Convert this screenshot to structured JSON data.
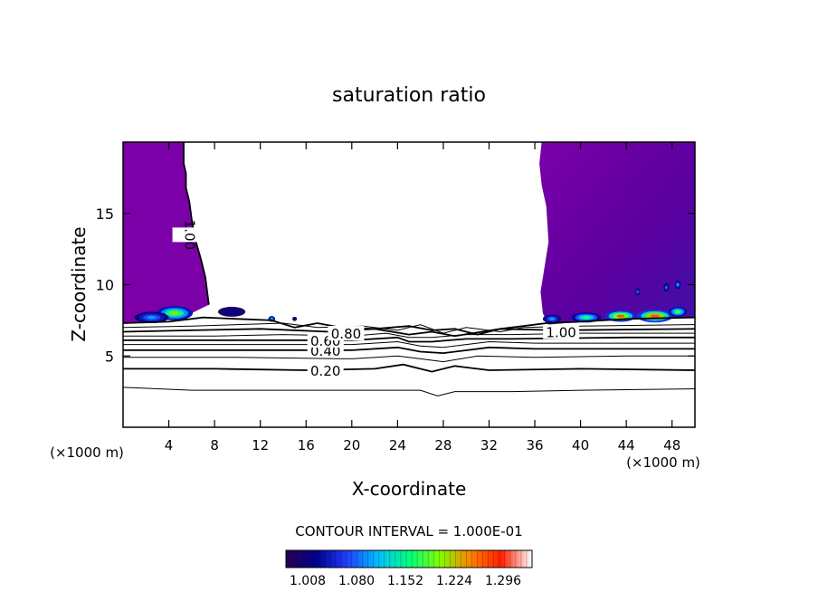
{
  "chart_data": {
    "type": "contour",
    "title": "saturation ratio",
    "xlabel": "X-coordinate",
    "ylabel": "Z-coordinate",
    "x_unit_left": "(×1000 m)",
    "x_unit_right": "(×1000 m)",
    "xlim": [
      0,
      50
    ],
    "ylim": [
      0,
      20
    ],
    "x_ticks": [
      4,
      8,
      12,
      16,
      20,
      24,
      28,
      32,
      36,
      40,
      44,
      48
    ],
    "y_ticks": [
      5,
      10,
      15
    ],
    "contour_labels": [
      {
        "text": "0.20",
        "x": 17.7,
        "z": 4.0
      },
      {
        "text": "0.40",
        "x": 17.7,
        "z": 5.4
      },
      {
        "text": "0.60",
        "x": 17.7,
        "z": 6.1
      },
      {
        "text": "0.80",
        "x": 19.5,
        "z": 6.6
      },
      {
        "text": "1.00",
        "x": 38.3,
        "z": 6.7
      },
      {
        "text": "1.00",
        "x": 5.9,
        "z": 13.5
      }
    ],
    "contour_lines": [
      {
        "level": "0.10",
        "x": [
          0,
          6,
          12,
          20,
          26,
          27.5,
          29,
          34,
          40,
          50
        ],
        "z": [
          2.8,
          2.6,
          2.6,
          2.6,
          2.6,
          2.2,
          2.5,
          2.5,
          2.6,
          2.7
        ]
      },
      {
        "level": "0.20",
        "x": [
          0,
          8,
          16,
          22,
          24.5,
          27,
          29,
          32,
          40,
          50
        ],
        "z": [
          4.1,
          4.1,
          4.0,
          4.1,
          4.4,
          3.9,
          4.3,
          4.0,
          4.1,
          4.0
        ]
      },
      {
        "level": "0.30",
        "x": [
          0,
          10,
          20,
          24,
          26,
          28,
          31,
          36,
          44,
          50
        ],
        "z": [
          4.9,
          4.9,
          4.8,
          5.0,
          4.8,
          4.6,
          5.0,
          4.9,
          5.0,
          5.0
        ]
      },
      {
        "level": "0.40",
        "x": [
          0,
          10,
          20,
          24,
          26,
          28,
          32,
          36,
          44,
          50
        ],
        "z": [
          5.4,
          5.4,
          5.4,
          5.6,
          5.3,
          5.2,
          5.6,
          5.5,
          5.5,
          5.5
        ]
      },
      {
        "level": "0.50",
        "x": [
          0,
          10,
          20,
          24,
          26,
          28,
          32,
          36,
          44,
          50
        ],
        "z": [
          5.8,
          5.8,
          5.8,
          6.0,
          5.7,
          5.6,
          6.0,
          5.9,
          5.9,
          5.9
        ]
      },
      {
        "level": "0.60",
        "x": [
          0,
          10,
          20,
          24,
          25,
          27,
          30,
          34,
          44,
          50
        ],
        "z": [
          6.1,
          6.1,
          6.1,
          6.3,
          6.0,
          6.0,
          6.2,
          6.2,
          6.3,
          6.3
        ]
      },
      {
        "level": "0.70",
        "x": [
          0,
          8,
          14,
          20,
          23,
          25,
          27,
          30,
          34,
          40,
          50
        ],
        "z": [
          6.4,
          6.4,
          6.5,
          6.4,
          6.6,
          6.3,
          6.3,
          6.5,
          6.5,
          6.6,
          6.6
        ]
      },
      {
        "level": "0.80",
        "x": [
          0,
          6,
          12,
          18,
          22,
          25,
          27,
          29,
          33,
          38,
          50
        ],
        "z": [
          6.7,
          6.8,
          6.9,
          6.7,
          6.9,
          6.5,
          6.7,
          6.4,
          6.9,
          6.8,
          6.9
        ]
      },
      {
        "level": "0.90",
        "x": [
          0,
          6,
          10,
          14,
          17,
          21,
          24,
          26,
          28,
          30,
          33,
          35,
          40,
          50
        ],
        "z": [
          7.0,
          7.1,
          7.2,
          7.3,
          7.0,
          7.1,
          6.8,
          7.2,
          6.6,
          7.0,
          6.7,
          7.0,
          7.1,
          7.2
        ]
      },
      {
        "level": "1.00",
        "x": [
          0,
          4,
          7,
          10,
          13,
          15,
          17,
          19,
          22,
          25,
          27,
          29,
          31,
          33,
          35,
          37,
          40,
          44,
          50
        ],
        "z": [
          7.3,
          7.4,
          7.7,
          7.6,
          7.5,
          7.0,
          7.3,
          7.0,
          6.9,
          7.1,
          6.8,
          6.9,
          6.5,
          6.9,
          7.1,
          7.3,
          7.4,
          7.6,
          7.7
        ]
      },
      {
        "level": "1.00",
        "x": [
          5.3,
          5.3,
          5.5,
          5.5,
          5.8,
          6.0,
          6.3,
          6.8,
          7.2,
          7.5
        ],
        "z": [
          20,
          18.5,
          17.8,
          16.8,
          15.8,
          14.6,
          13.2,
          11.8,
          10.5,
          8.6
        ]
      }
    ],
    "supersaturated_region": {
      "left": {
        "x": [
          0,
          5.3,
          5.3,
          5.5,
          5.5,
          5.8,
          6.0,
          6.3,
          6.8,
          7.2,
          7.5,
          5.0,
          2.0,
          0
        ],
        "z": [
          20,
          20,
          18.5,
          17.8,
          16.8,
          15.8,
          14.6,
          13.2,
          11.8,
          10.5,
          8.6,
          7.6,
          7.4,
          7.3
        ]
      },
      "right": {
        "x": [
          36.6,
          36.4,
          36.6,
          37.0,
          37.2,
          36.8,
          36.5,
          36.7,
          37.2,
          40,
          44,
          50,
          50
        ],
        "z": [
          20,
          18.5,
          17.0,
          15.5,
          13.0,
          11.0,
          9.5,
          8.0,
          7.2,
          7.4,
          7.6,
          7.7,
          20
        ]
      },
      "blobs": [
        {
          "x": 4.5,
          "z": 8.0,
          "rx": 1.6,
          "rz": 0.5,
          "level": 1.22
        },
        {
          "x": 2.5,
          "z": 7.7,
          "rx": 1.5,
          "rz": 0.4,
          "level": 1.12
        },
        {
          "x": 9.5,
          "z": 8.1,
          "rx": 1.2,
          "rz": 0.35,
          "level": 1.05
        },
        {
          "x": 13.0,
          "z": 7.6,
          "rx": 0.3,
          "rz": 0.2,
          "level": 1.12
        },
        {
          "x": 15.0,
          "z": 7.6,
          "rx": 0.2,
          "rz": 0.15,
          "level": 1.04
        },
        {
          "x": 37.5,
          "z": 7.6,
          "rx": 0.8,
          "rz": 0.3,
          "level": 1.12
        },
        {
          "x": 40.5,
          "z": 7.7,
          "rx": 1.3,
          "rz": 0.35,
          "level": 1.18
        },
        {
          "x": 43.5,
          "z": 7.8,
          "rx": 1.4,
          "rz": 0.4,
          "level": 1.27
        },
        {
          "x": 46.5,
          "z": 7.8,
          "rx": 1.6,
          "rz": 0.45,
          "level": 1.3
        },
        {
          "x": 48.5,
          "z": 8.1,
          "rx": 0.8,
          "rz": 0.35,
          "level": 1.2
        },
        {
          "x": 45.0,
          "z": 9.5,
          "rx": 0.2,
          "rz": 0.25,
          "level": 1.1
        },
        {
          "x": 47.5,
          "z": 9.8,
          "rx": 0.25,
          "rz": 0.3,
          "level": 1.1
        },
        {
          "x": 48.5,
          "z": 10.0,
          "rx": 0.25,
          "rz": 0.3,
          "level": 1.12
        }
      ]
    },
    "contour_interval_text": "CONTOUR INTERVAL = 1.000E-01",
    "colorbar": {
      "min": 1.008,
      "max": 1.332,
      "tick_labels": [
        "1.008",
        "1.080",
        "1.152",
        "1.224",
        "1.296"
      ],
      "colors": [
        "#2a0050",
        "#000090",
        "#2040ff",
        "#00c0ff",
        "#00ff80",
        "#80ff00",
        "#ff8000",
        "#ff2000",
        "#ffffff"
      ]
    },
    "fill_colors": {
      "base": "#7b00a8",
      "dark": "#5a00a0",
      "deep": "#4010a8"
    }
  }
}
